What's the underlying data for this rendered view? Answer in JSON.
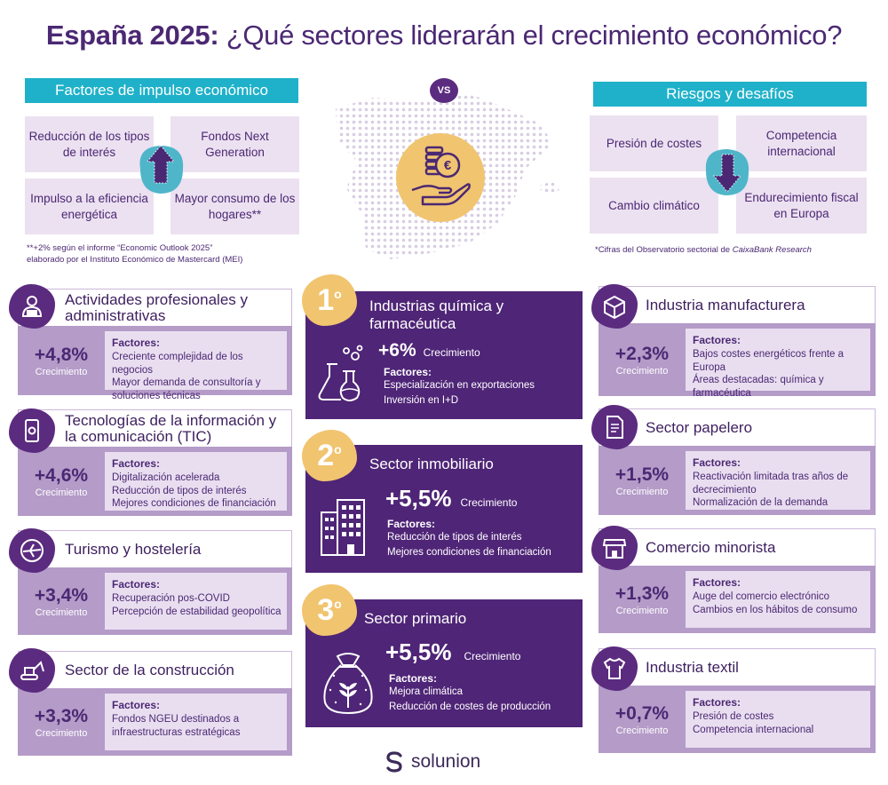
{
  "title": {
    "part1": "España 2025:",
    "part2": "¿Qué sectores liderarán el crecimiento económico?"
  },
  "vs": "VS",
  "drivers": {
    "heading": "Factores de impulso económico",
    "items": [
      "Reducción de los tipos de interés",
      "Fondos Next Generation",
      "Impulso a la eficiencia energética",
      "Mayor consumo de los hogares**"
    ],
    "footnote_line1": "**+2% según el informe “Economic Outlook 2025”",
    "footnote_line2": "elaborado por el Instituto Económico de Mastercard (MEI)"
  },
  "risks": {
    "heading": "Riesgos y desafíos",
    "items": [
      "Presión de costes",
      "Competencia internacional",
      "Cambio climático",
      "Endurecimiento fiscal en Europa"
    ],
    "footnote_prefix": "*Cifras del Observatorio sectorial de ",
    "footnote_italic": "CaixaBank Research"
  },
  "labels": {
    "growth": "Crecimiento",
    "factors": "Factores:"
  },
  "left_sectors": [
    {
      "title": "Actividades profesionales y administrativas",
      "pct": "+4,8%",
      "factors": [
        "Creciente complejidad de los negocios",
        "Mayor demanda de consultoría y soluciones técnicas"
      ]
    },
    {
      "title": "Tecnologías de la información y la comunicación (TIC)",
      "pct": "+4,6%",
      "factors": [
        "Digitalización acelerada",
        "Reducción de tipos de interés",
        "Mejores condiciones de financiación"
      ]
    },
    {
      "title": "Turismo y hostelería",
      "pct": "+3,4%",
      "factors": [
        "Recuperación pos-COVID",
        "Percepción de estabilidad geopolítica"
      ]
    },
    {
      "title": "Sector de la construcción",
      "pct": "+3,3%",
      "factors": [
        "Fondos NGEU destinados a infraestructuras estratégicas"
      ]
    }
  ],
  "right_sectors": [
    {
      "title": "Industria manufacturera",
      "pct": "+2,3%",
      "factors": [
        "Bajos costes energéticos frente a Europa",
        "Áreas destacadas: química y farmacéutica"
      ]
    },
    {
      "title": "Sector papelero",
      "pct": "+1,5%",
      "factors": [
        "Reactivación limitada tras años de decrecimiento",
        "Normalización de la demanda"
      ]
    },
    {
      "title": "Comercio minorista",
      "pct": "+1,3%",
      "factors": [
        "Auge del comercio electrónico",
        "Cambios en los hábitos de consumo"
      ]
    },
    {
      "title": "Industria textil",
      "pct": "+0,7%",
      "factors": [
        "Presión de costes",
        "Competencia internacional"
      ]
    }
  ],
  "top3": [
    {
      "rank": "1",
      "sup": "o",
      "title": "Industrias química y farmacéutica",
      "pct": "+6%",
      "factors": [
        "Especialización en exportaciones",
        "Inversión en I+D"
      ]
    },
    {
      "rank": "2",
      "sup": "o",
      "title": "Sector inmobiliario",
      "pct": "+5,5%",
      "factors": [
        "Reducción de tipos de interés",
        "Mejores condiciones de financiación"
      ]
    },
    {
      "rank": "3",
      "sup": "o",
      "title": "Sector primario",
      "pct": "+5,5%",
      "factors": [
        "Mejora climática",
        "Reducción de costes de producción"
      ]
    }
  ],
  "brand": "solunion",
  "colors": {
    "purple_dark": "#4f2577",
    "purple_light": "#b49bc8",
    "lavender": "#ece1f1",
    "teal": "#1fb1c9",
    "gold": "#f1c46f"
  },
  "icons": [
    "person-laptop-icon",
    "phone-gear-icon",
    "airplane-icon",
    "excavator-icon",
    "factory-box-icon",
    "paper-document-icon",
    "shop-icon",
    "tshirt-icon",
    "flasks-icon",
    "building-icon",
    "sack-wheat-icon",
    "hand-euro-coins-icon",
    "arrow-up-icon",
    "arrow-down-icon",
    "spain-map"
  ]
}
